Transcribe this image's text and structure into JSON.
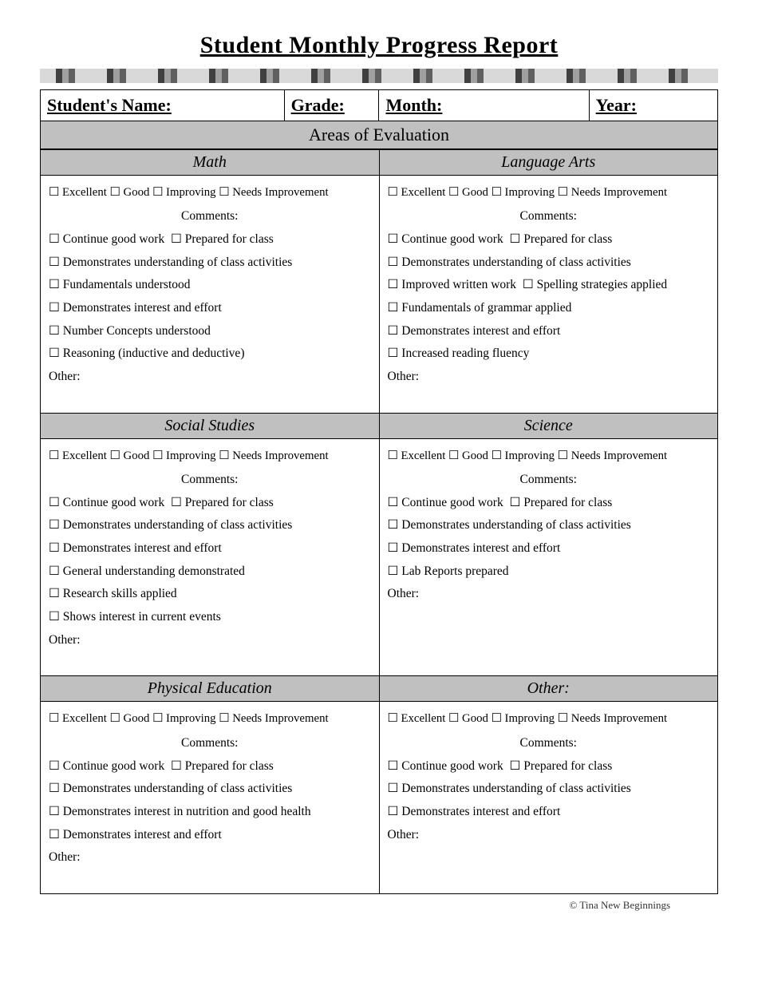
{
  "title": "Student Monthly Progress Report",
  "header": {
    "studentName": "Student's Name:",
    "grade": "Grade:",
    "month": "Month:",
    "year": "Year:"
  },
  "areasOfEvaluation": "Areas of Evaluation",
  "ratings": [
    "Excellent",
    "Good",
    "Improving",
    "Needs Improvement"
  ],
  "commentsLabel": "Comments:",
  "otherLabel": "Other:",
  "checkbox": "☐",
  "subjects": [
    {
      "title": "Math",
      "items": [
        [
          "Continue good work",
          "Prepared for class"
        ],
        [
          "Demonstrates understanding of class activities"
        ],
        [
          "Fundamentals understood"
        ],
        [
          "Demonstrates interest and effort"
        ],
        [
          "Number Concepts understood"
        ],
        [
          "Reasoning (inductive and deductive)"
        ]
      ]
    },
    {
      "title": "Language Arts",
      "items": [
        [
          "Continue good work",
          "Prepared for class"
        ],
        [
          "Demonstrates understanding of class activities"
        ],
        [
          "Improved written work",
          "Spelling strategies applied"
        ],
        [
          "Fundamentals of grammar applied"
        ],
        [
          "Demonstrates interest and effort"
        ],
        [
          "Increased reading  fluency"
        ]
      ]
    },
    {
      "title": "Social Studies",
      "items": [
        [
          "Continue  good work",
          "Prepared for class"
        ],
        [
          "Demonstrates understanding of class activities"
        ],
        [
          "Demonstrates interest and effort"
        ],
        [
          "General understanding demonstrated"
        ],
        [
          "Research skills applied"
        ],
        [
          "Shows interest in current events"
        ]
      ]
    },
    {
      "title": "Science",
      "items": [
        [
          "Continue good work",
          "Prepared for class"
        ],
        [
          "Demonstrates understanding of class activities"
        ],
        [
          "Demonstrates interest and effort"
        ],
        [
          "Lab Reports prepared"
        ]
      ]
    },
    {
      "title": "Physical Education",
      "items": [
        [
          "Continue good work",
          "Prepared for class"
        ],
        [
          "Demonstrates understanding of class activities"
        ],
        [
          "Demonstrates interest in nutrition and good health"
        ],
        [
          "Demonstrates  interest and effort"
        ]
      ]
    },
    {
      "title": "Other:",
      "items": [
        [
          "Continue good work",
          "Prepared for class"
        ],
        [
          "Demonstrates understanding of class activities"
        ],
        [
          "Demonstrates  interest and effort"
        ]
      ]
    }
  ],
  "footer": "©  Tina New Beginnings",
  "colors": {
    "headerBg": "#c0c0c0",
    "border": "#000000",
    "text": "#000000"
  }
}
